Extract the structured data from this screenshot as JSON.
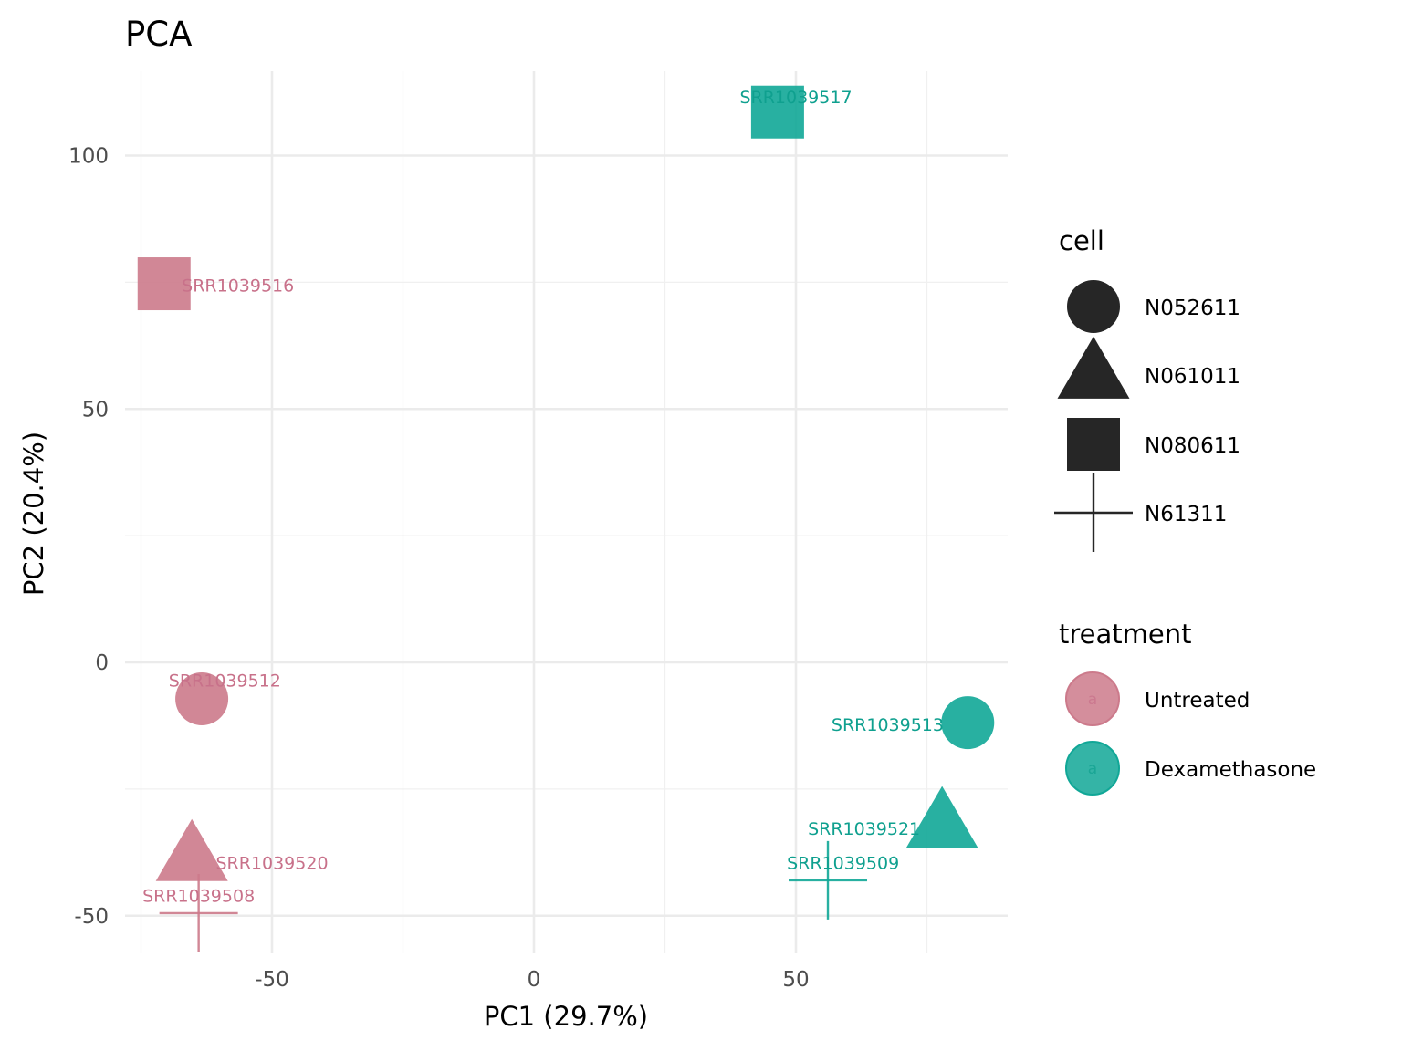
{
  "chart_data": {
    "type": "scatter",
    "title": "PCA",
    "xlabel": "PC1 (29.7%)",
    "ylabel": "PC2 (20.4%)",
    "xlim": [
      -75,
      90
    ],
    "ylim": [
      -57,
      117
    ],
    "x_ticks": [
      -50,
      0,
      50
    ],
    "x_tick_labels": [
      "-50",
      "0",
      "50"
    ],
    "x_minor_ticks": [
      -75,
      -25,
      25,
      75
    ],
    "y_ticks": [
      -50,
      0,
      50,
      100
    ],
    "y_tick_labels": [
      "-50",
      "0",
      "50",
      "100"
    ],
    "y_minor_ticks": [
      -25,
      25,
      75
    ],
    "grid": true,
    "legend_position": "right",
    "colors": {
      "Untreated": "#CC7A8B",
      "Dexamethasone": "#11A797"
    },
    "label_colors": {
      "Untreated": "#C8718A",
      "Dexamethasone": "#0FA08F"
    },
    "shapes": {
      "N052611": "circle",
      "N061011": "triangle",
      "N080611": "square",
      "N61311": "plus"
    },
    "points": [
      {
        "sample": "SRR1039508",
        "x": -64.0,
        "y": -49.5,
        "cell": "N61311",
        "treatment": "Untreated"
      },
      {
        "sample": "SRR1039509",
        "x": 56.1,
        "y": -43.0,
        "cell": "N61311",
        "treatment": "Dexamethasone"
      },
      {
        "sample": "SRR1039512",
        "x": -63.4,
        "y": -7.2,
        "cell": "N052611",
        "treatment": "Untreated"
      },
      {
        "sample": "SRR1039513",
        "x": 82.8,
        "y": -11.9,
        "cell": "N052611",
        "treatment": "Dexamethasone"
      },
      {
        "sample": "SRR1039516",
        "x": -70.6,
        "y": 74.7,
        "cell": "N080611",
        "treatment": "Untreated"
      },
      {
        "sample": "SRR1039517",
        "x": 46.5,
        "y": 108.6,
        "cell": "N080611",
        "treatment": "Dexamethasone"
      },
      {
        "sample": "SRR1039520",
        "x": -65.3,
        "y": -38.5,
        "cell": "N061011",
        "treatment": "Untreated"
      },
      {
        "sample": "SRR1039521",
        "x": 77.9,
        "y": -32.0,
        "cell": "N061011",
        "treatment": "Dexamethasone"
      }
    ],
    "labels": [
      {
        "sample": "SRR1039508",
        "x": -64.0,
        "y": -46.0,
        "anchor": "middle"
      },
      {
        "sample": "SRR1039509",
        "x": 59.0,
        "y": -39.5,
        "anchor": "middle"
      },
      {
        "sample": "SRR1039512",
        "x": -59.0,
        "y": -3.5,
        "anchor": "middle"
      },
      {
        "sample": "SRR1039513",
        "x": 67.5,
        "y": -12.2,
        "anchor": "middle"
      },
      {
        "sample": "SRR1039516",
        "x": -56.5,
        "y": 74.4,
        "anchor": "middle"
      },
      {
        "sample": "SRR1039517",
        "x": 50.0,
        "y": 111.6,
        "anchor": "middle"
      },
      {
        "sample": "SRR1039520",
        "x": -50.0,
        "y": -39.5,
        "anchor": "middle"
      },
      {
        "sample": "SRR1039521",
        "x": 63.0,
        "y": -32.8,
        "anchor": "middle"
      }
    ],
    "legend": {
      "cell": {
        "title": "cell",
        "entries": [
          "N052611",
          "N061011",
          "N080611",
          "N61311"
        ]
      },
      "treatment": {
        "title": "treatment",
        "entries": [
          "Untreated",
          "Dexamethasone"
        ],
        "key_glyph_text": "a"
      }
    }
  }
}
